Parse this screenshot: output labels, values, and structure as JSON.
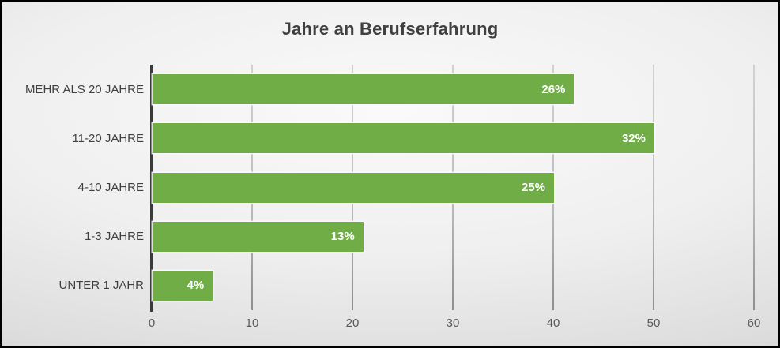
{
  "chart_data": {
    "type": "bar",
    "orientation": "horizontal",
    "title": "Jahre an Berufserfahrung",
    "categories": [
      "MEHR ALS 20 JAHRE",
      "11-20 JAHRE",
      "4-10 JAHRE",
      "1-3 JAHRE",
      "UNTER 1 JAHR"
    ],
    "values": [
      42,
      50,
      40,
      21,
      6
    ],
    "data_labels": [
      "26%",
      "32%",
      "25%",
      "13%",
      "4%"
    ],
    "xlabel": "",
    "ylabel": "",
    "xlim": [
      0,
      60
    ],
    "x_ticks": [
      0,
      10,
      20,
      30,
      40,
      50,
      60
    ],
    "grid": true,
    "legend": false,
    "colors": {
      "bar": "#70AD47",
      "data_label": "#FFFFFF",
      "title": "#404040",
      "category_label": "#404040",
      "tick_label": "#595959",
      "axis_line": "#3A3A3A",
      "gridline": "#B5B5B5",
      "background_center": "#FAFAFA",
      "background_edge": "#C6C6C6",
      "slide_border": "#000000"
    }
  }
}
